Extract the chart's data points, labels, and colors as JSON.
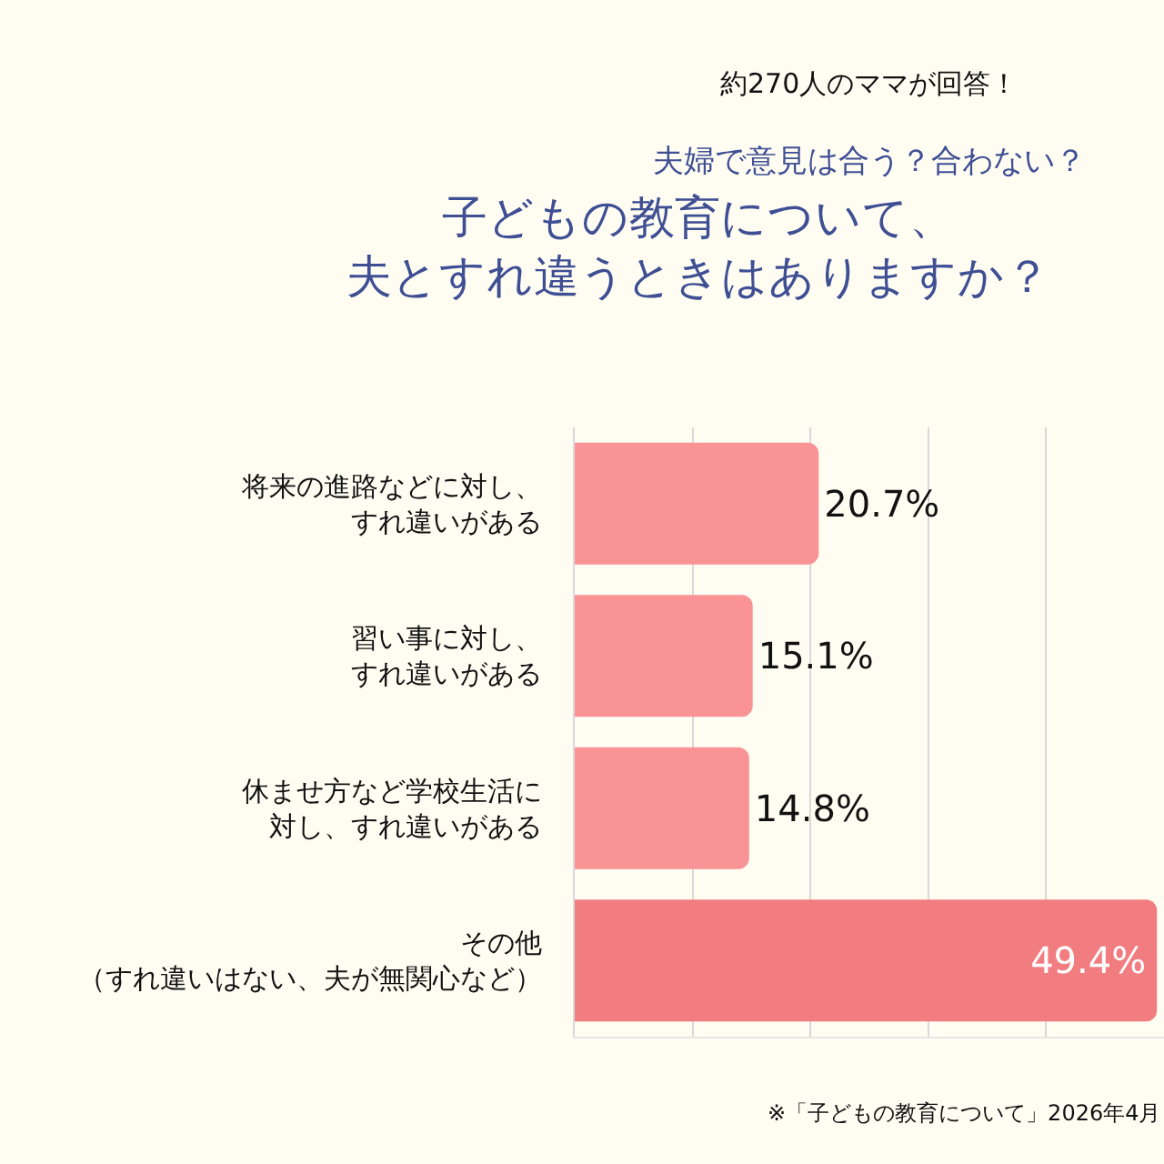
{
  "chart_data": {
    "type": "bar",
    "orientation": "horizontal",
    "title": "子どもの教育について、夫とすれ違うときはありますか？",
    "subtitle": "夫婦で意見は合う？合わない？",
    "annotations": [
      "約270人のママが回答！",
      "※「子どもの教育について」2026年4月"
    ],
    "categories": [
      "将来の進路などに対し、すれ違いがある",
      "習い事に対し、すれ違いがある",
      "休ませ方など学校生活に対し、すれ違いがある",
      "その他（すれ違いはない、夫が無関心など）"
    ],
    "values": [
      20.7,
      15.1,
      14.8,
      49.4
    ],
    "value_labels": [
      "20.7%",
      "15.1%",
      "14.8%",
      "49.4%"
    ],
    "colors": [
      "#f99396",
      "#f99396",
      "#f99396",
      "#f27d80"
    ],
    "xlim": [
      0,
      50
    ],
    "xticks": [
      {
        "value": 0,
        "label": null
      },
      {
        "value": 10,
        "label": null
      },
      {
        "value": 20,
        "label": null
      },
      {
        "value": 30,
        "label": null
      },
      {
        "value": 40,
        "label": null
      }
    ],
    "grid": "x",
    "tick_labels": "y"
  }
}
